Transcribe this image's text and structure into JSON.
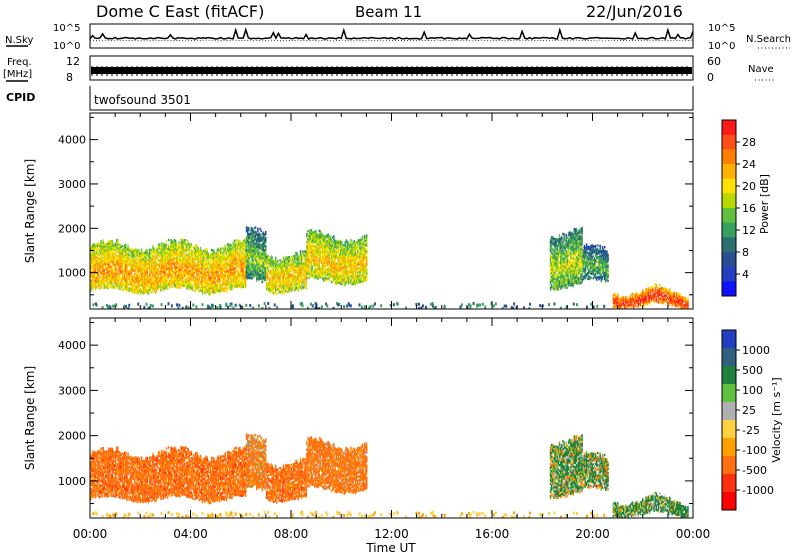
{
  "header": {
    "site": "Dome C East (fitACF)",
    "beam": "Beam 11",
    "date": "22/Jun/2016"
  },
  "noise_panel": {
    "left_label": "N.Sky",
    "right_label": "N.Search",
    "left_ticks": [
      "10^5",
      "10^0"
    ],
    "right_ticks": [
      "10^5",
      "10^0"
    ]
  },
  "freq_panel": {
    "left_label_1": "Freq.",
    "left_label_2": "[MHz]",
    "left_tick_top": "12",
    "left_tick_bottom": "8",
    "right_label": "Nave",
    "right_tick_top": "60",
    "right_tick_bottom": "0"
  },
  "cpid_panel": {
    "label": "CPID",
    "program": "twofsound 3501"
  },
  "power_panel": {
    "ylabel": "Slant Range [km]",
    "colorbar_label": "Power [dB]",
    "colorbar_ticks": [
      "28",
      "24",
      "20",
      "16",
      "12",
      "8",
      "4"
    ],
    "colorbar_colors": [
      "#ff1a1a",
      "#ff4d1a",
      "#ff8000",
      "#ffb000",
      "#ffe000",
      "#b8d800",
      "#60c040",
      "#38a060",
      "#2a7070",
      "#285090",
      "#2040c0",
      "#1010ff"
    ]
  },
  "velocity_panel": {
    "ylabel": "Slant Range [km]",
    "colorbar_label": "Velocity [m s⁻¹]",
    "colorbar_ticks": [
      "1000",
      "500",
      "100",
      "25",
      "-25",
      "-100",
      "-500",
      "-1000"
    ],
    "colorbar_colors": [
      "#2040c0",
      "#306080",
      "#208040",
      "#60c040",
      "#b0b0b0",
      "#ffd040",
      "#ffa000",
      "#ff7010",
      "#ff3010",
      "#ff0000"
    ]
  },
  "xaxis": {
    "label": "Time UT",
    "ticks": [
      "00:00",
      "04:00",
      "08:00",
      "12:00",
      "16:00",
      "20:00",
      "00:00"
    ]
  },
  "chart_data": {
    "type": "heatmap",
    "title": "Dome C East (fitACF)",
    "subtitle": "Beam 11",
    "date": "22/Jun/2016",
    "xlabel": "Time UT",
    "ylabel": "Slant Range [km]",
    "x_hours": [
      0,
      4,
      8,
      12,
      16,
      20,
      24
    ],
    "xlim": [
      0,
      24
    ],
    "ylim": [
      180,
      4600
    ],
    "yticks": [
      1000,
      2000,
      3000,
      4000
    ],
    "freq_mhz": 10.5,
    "power_scale": {
      "label": "Power [dB]",
      "range": [
        0,
        32
      ]
    },
    "velocity_scale": {
      "label": "Velocity [m s-1]",
      "range": [
        -1000,
        1000
      ]
    },
    "echo_regions": [
      {
        "t_start": 0.0,
        "t_end": 6.2,
        "range_low": 600,
        "range_high": 1600,
        "power_db": 24,
        "velocity": -300
      },
      {
        "t_start": 6.2,
        "t_end": 7.0,
        "range_low": 800,
        "range_high": 1900,
        "power_db": 16,
        "velocity": -200
      },
      {
        "t_start": 7.0,
        "t_end": 8.6,
        "range_low": 600,
        "range_high": 1400,
        "power_db": 22,
        "velocity": -300
      },
      {
        "t_start": 8.6,
        "t_end": 11.0,
        "range_low": 800,
        "range_high": 1800,
        "power_db": 22,
        "velocity": -250
      },
      {
        "t_start": 18.3,
        "t_end": 19.6,
        "range_low": 700,
        "range_high": 1900,
        "power_db": 18,
        "velocity": 100
      },
      {
        "t_start": 19.6,
        "t_end": 20.6,
        "range_low": 800,
        "range_high": 1500,
        "power_db": 14,
        "velocity": 80
      },
      {
        "t_start": 20.8,
        "t_end": 23.8,
        "range_low": 250,
        "range_high": 550,
        "power_db": 30,
        "velocity": 150
      }
    ]
  }
}
